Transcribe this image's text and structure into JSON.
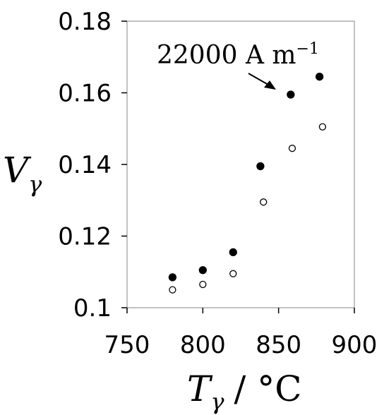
{
  "chart_data": {
    "type": "scatter",
    "xlim": [
      750,
      900
    ],
    "ylim": [
      0.1,
      0.18
    ],
    "x_ticks": [
      "750",
      "800",
      "850",
      "900"
    ],
    "y_ticks": [
      "0.1",
      "0.12",
      "0.14",
      "0.16",
      "0.18"
    ],
    "xlabel": {
      "main": "T",
      "sub": "γ",
      "rest": "/ °C"
    },
    "ylabel": {
      "main": "V",
      "sub": "γ"
    },
    "grid": false,
    "legend": "none",
    "series": [
      {
        "marker": "filled-circle",
        "x": [
          780,
          800,
          820,
          838,
          858,
          877
        ],
        "y": [
          0.1085,
          0.1105,
          0.1155,
          0.1395,
          0.1595,
          0.1645
        ]
      },
      {
        "marker": "open-circle",
        "x": [
          780,
          800,
          820,
          840,
          859,
          879
        ],
        "y": [
          0.105,
          0.1065,
          0.1095,
          0.1295,
          0.1445,
          0.1505
        ]
      }
    ],
    "annotation": {
      "text": "22000 A m",
      "superscript": "−1"
    }
  }
}
